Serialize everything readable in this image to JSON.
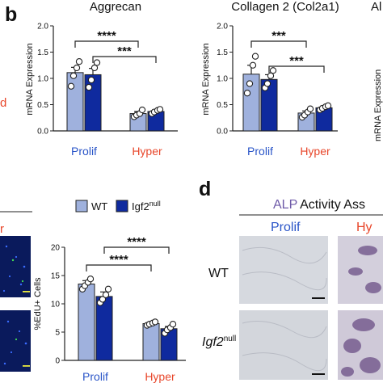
{
  "panels": {
    "b": "b",
    "d": "d"
  },
  "colors": {
    "wt": "#9fb1dd",
    "igf2": "#0f2a9e",
    "prolif": "#2a55c8",
    "hyper": "#e8462a",
    "alp": "#6e5aa8",
    "axis": "#222222"
  },
  "legend": {
    "wt": "WT",
    "igf2_base": "Igf2",
    "igf2_sup": "null"
  },
  "panel_d": {
    "title_alp": "ALP",
    "title_rest": "Activity Ass",
    "col_prolif": "Prolif",
    "col_hyper": "Hy",
    "row_wt": "WT",
    "row_igf2_base": "Igf2",
    "row_igf2_sup": "null"
  },
  "left_edge": {
    "hyper_fragment": "r",
    "cropped_letter": "d"
  },
  "chart_data": [
    {
      "type": "bar",
      "title": "Aggrecan",
      "ylabel": "mRNA Expression",
      "ylim": [
        0,
        2.0
      ],
      "yticks": [
        "0.0",
        "0.5",
        "1.0",
        "1.5",
        "2.0"
      ],
      "categories": [
        "Prolif",
        "Hyper"
      ],
      "series": [
        {
          "name": "WT",
          "values": [
            1.11,
            0.33
          ],
          "errors": [
            0.1,
            0.04
          ],
          "points": [
            [
              0.85,
              1.05,
              1.2,
              1.32
            ],
            [
              0.27,
              0.3,
              0.33,
              0.4
            ]
          ]
        },
        {
          "name": "Igf2null",
          "values": [
            1.07,
            0.37
          ],
          "errors": [
            0.12,
            0.03
          ],
          "points": [
            [
              0.83,
              0.97,
              1.2,
              1.3
            ],
            [
              0.33,
              0.36,
              0.39,
              0.41
            ]
          ]
        }
      ],
      "significance": [
        "****",
        "***"
      ]
    },
    {
      "type": "bar",
      "title": "Collagen 2 (Col2a1)",
      "ylabel": "mRNA Expression",
      "ylim": [
        0,
        2.0
      ],
      "yticks": [
        "0.0",
        "0.5",
        "1.0",
        "1.5",
        "2.0"
      ],
      "categories": [
        "Prolif",
        "Hyper"
      ],
      "series": [
        {
          "name": "WT",
          "values": [
            1.08,
            0.34
          ],
          "errors": [
            0.17,
            0.04
          ],
          "points": [
            [
              0.72,
              0.9,
              1.25,
              1.42
            ],
            [
              0.26,
              0.3,
              0.36,
              0.42
            ]
          ]
        },
        {
          "name": "Igf2null",
          "values": [
            0.98,
            0.44
          ],
          "errors": [
            0.09,
            0.03
          ],
          "points": [
            [
              0.82,
              0.9,
              1.05,
              1.15
            ],
            [
              0.4,
              0.43,
              0.46,
              0.48
            ]
          ]
        }
      ],
      "significance": [
        "***",
        "***"
      ]
    },
    {
      "type": "bar",
      "title": "",
      "ylabel": "%EdU+ Cells",
      "ylim": [
        0,
        20
      ],
      "yticks": [
        "0",
        "5",
        "10",
        "15",
        "20"
      ],
      "categories": [
        "Prolif",
        "Hyper"
      ],
      "series": [
        {
          "name": "WT",
          "values": [
            13.5,
            6.5
          ],
          "errors": [
            0.6,
            0.2
          ],
          "points": [
            [
              12.6,
              13.2,
              13.8,
              14.4
            ],
            [
              6.2,
              6.4,
              6.6,
              6.8
            ]
          ]
        },
        {
          "name": "Igf2null",
          "values": [
            11.3,
            5.6
          ],
          "errors": [
            0.8,
            0.4
          ],
          "points": [
            [
              10.2,
              10.8,
              11.6,
              12.6
            ],
            [
              4.8,
              5.4,
              5.8,
              6.4
            ]
          ]
        }
      ],
      "significance": [
        "****",
        "****"
      ]
    }
  ]
}
